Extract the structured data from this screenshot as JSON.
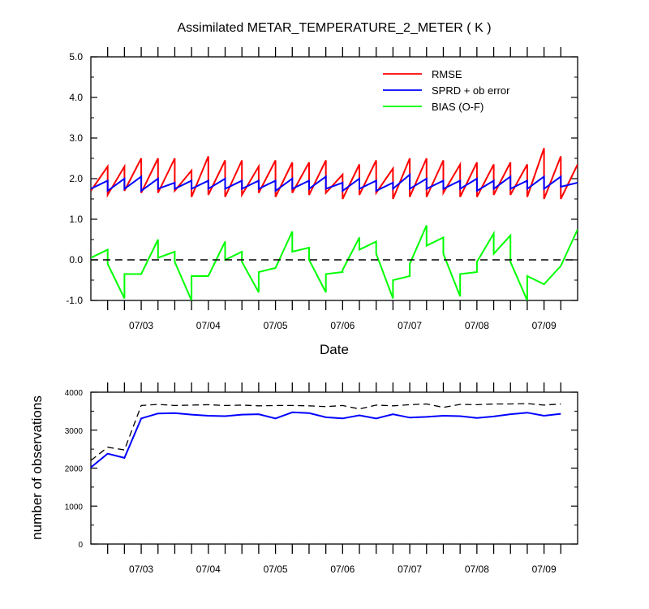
{
  "chart_data": [
    {
      "type": "line",
      "title": "Assimilated METAR_TEMPERATURE_2_METER ( K )",
      "xlabel": "Date",
      "ylabel": "",
      "ylim": [
        -1.0,
        5.0
      ],
      "yticks": [
        "-1.0",
        "0.0",
        "1.0",
        "2.0",
        "3.0",
        "4.0",
        "5.0"
      ],
      "xlim": [
        0,
        29
      ],
      "xticks": [
        {
          "x": 3,
          "label": "07/03"
        },
        {
          "x": 7,
          "label": "07/04"
        },
        {
          "x": 11,
          "label": "07/05"
        },
        {
          "x": 15,
          "label": "07/06"
        },
        {
          "x": 19,
          "label": "07/07"
        },
        {
          "x": 23,
          "label": "07/08"
        },
        {
          "x": 27,
          "label": "07/09"
        }
      ],
      "legend_position": "top-right",
      "reference_line": {
        "y": 0.0,
        "style": "dashed"
      },
      "series": [
        {
          "name": "RMSE",
          "color": "#ff0000",
          "values": [
            [
              1.7,
              2.3
            ],
            [
              1.6,
              2.3
            ],
            [
              1.7,
              2.5
            ],
            [
              1.65,
              2.5
            ],
            [
              1.65,
              2.5
            ],
            [
              1.7,
              2.2
            ],
            [
              1.55,
              2.55
            ],
            [
              1.6,
              2.45
            ],
            [
              1.55,
              2.45
            ],
            [
              1.6,
              2.3
            ],
            [
              1.65,
              2.45
            ],
            [
              1.55,
              2.4
            ],
            [
              1.65,
              2.4
            ],
            [
              1.6,
              2.45
            ],
            [
              1.65,
              2.1
            ],
            [
              1.5,
              2.35
            ],
            [
              1.6,
              2.45
            ],
            [
              1.65,
              2.25
            ],
            [
              1.5,
              2.5
            ],
            [
              1.55,
              2.5
            ],
            [
              1.55,
              2.45
            ],
            [
              1.65,
              2.35
            ],
            [
              1.55,
              2.4
            ],
            [
              1.55,
              2.35
            ],
            [
              1.6,
              2.4
            ],
            [
              1.6,
              2.35
            ],
            [
              1.55,
              2.75
            ],
            [
              1.5,
              2.55
            ],
            [
              1.5,
              2.35
            ]
          ]
        },
        {
          "name": "SPRD + ob error",
          "color": "#0000ff",
          "values": [
            [
              1.75,
              1.95
            ],
            [
              1.7,
              2.0
            ],
            [
              1.75,
              2.05
            ],
            [
              1.7,
              2.0
            ],
            [
              1.75,
              1.9
            ],
            [
              1.75,
              1.95
            ],
            [
              1.75,
              1.95
            ],
            [
              1.75,
              2.0
            ],
            [
              1.75,
              1.95
            ],
            [
              1.75,
              1.95
            ],
            [
              1.75,
              1.95
            ],
            [
              1.7,
              2.0
            ],
            [
              1.75,
              1.95
            ],
            [
              1.75,
              2.05
            ],
            [
              1.75,
              1.9
            ],
            [
              1.7,
              2.0
            ],
            [
              1.75,
              1.95
            ],
            [
              1.7,
              1.9
            ],
            [
              1.75,
              2.1
            ],
            [
              1.75,
              2.0
            ],
            [
              1.75,
              1.95
            ],
            [
              1.75,
              1.95
            ],
            [
              1.75,
              2.0
            ],
            [
              1.7,
              1.95
            ],
            [
              1.75,
              2.05
            ],
            [
              1.75,
              1.95
            ],
            [
              1.75,
              2.05
            ],
            [
              1.75,
              2.05
            ],
            [
              1.8,
              1.9
            ]
          ]
        },
        {
          "name": "BIAS (O-F)",
          "color": "#00ff00",
          "values": [
            [
              0.05,
              0.25
            ],
            [
              -0.1,
              -0.95
            ],
            [
              -0.35,
              -0.35
            ],
            [
              -0.35,
              0.5
            ],
            [
              0.05,
              0.2
            ],
            [
              -0.05,
              -1.0
            ],
            [
              -0.4,
              -0.4
            ],
            [
              -0.4,
              0.45
            ],
            [
              0.0,
              0.2
            ],
            [
              -0.05,
              -0.8
            ],
            [
              -0.3,
              -0.2
            ],
            [
              -0.2,
              0.7
            ],
            [
              0.2,
              0.3
            ],
            [
              0.0,
              -0.8
            ],
            [
              -0.35,
              -0.3
            ],
            [
              -0.25,
              0.55
            ],
            [
              0.25,
              0.45
            ],
            [
              0.15,
              -0.95
            ],
            [
              -0.5,
              -0.4
            ],
            [
              -0.1,
              0.85
            ],
            [
              0.35,
              0.55
            ],
            [
              0.15,
              -0.9
            ],
            [
              -0.35,
              -0.3
            ],
            [
              -0.05,
              0.65
            ],
            [
              0.15,
              0.6
            ],
            [
              -0.05,
              -1.0
            ],
            [
              -0.4,
              -0.6
            ],
            [
              -0.6,
              -0.15
            ],
            [
              -0.15,
              0.75
            ]
          ]
        }
      ]
    },
    {
      "type": "line",
      "title": "",
      "xlabel": "",
      "ylabel": "number of observations",
      "ylim": [
        0,
        4000
      ],
      "yticks": [
        "0",
        "1000",
        "2000",
        "3000",
        "4000"
      ],
      "xlim": [
        0,
        29
      ],
      "xticks": [
        {
          "x": 3,
          "label": "07/03"
        },
        {
          "x": 7,
          "label": "07/04"
        },
        {
          "x": 11,
          "label": "07/05"
        },
        {
          "x": 15,
          "label": "07/06"
        },
        {
          "x": 19,
          "label": "07/07"
        },
        {
          "x": 23,
          "label": "07/08"
        },
        {
          "x": 27,
          "label": "07/09"
        }
      ],
      "series": [
        {
          "style": "dashed",
          "color": "#000000",
          "values": [
            2200,
            2550,
            2480,
            3650,
            3680,
            3650,
            3660,
            3670,
            3650,
            3660,
            3640,
            3650,
            3650,
            3640,
            3620,
            3650,
            3560,
            3660,
            3640,
            3670,
            3690,
            3600,
            3680,
            3670,
            3690,
            3690,
            3700,
            3660,
            3690
          ]
        },
        {
          "style": "solid",
          "color": "#0000ff",
          "values": [
            2020,
            2380,
            2270,
            3310,
            3440,
            3450,
            3410,
            3380,
            3370,
            3410,
            3420,
            3310,
            3470,
            3450,
            3340,
            3310,
            3390,
            3310,
            3420,
            3330,
            3350,
            3380,
            3370,
            3320,
            3360,
            3420,
            3460,
            3380,
            3430
          ]
        }
      ]
    }
  ]
}
